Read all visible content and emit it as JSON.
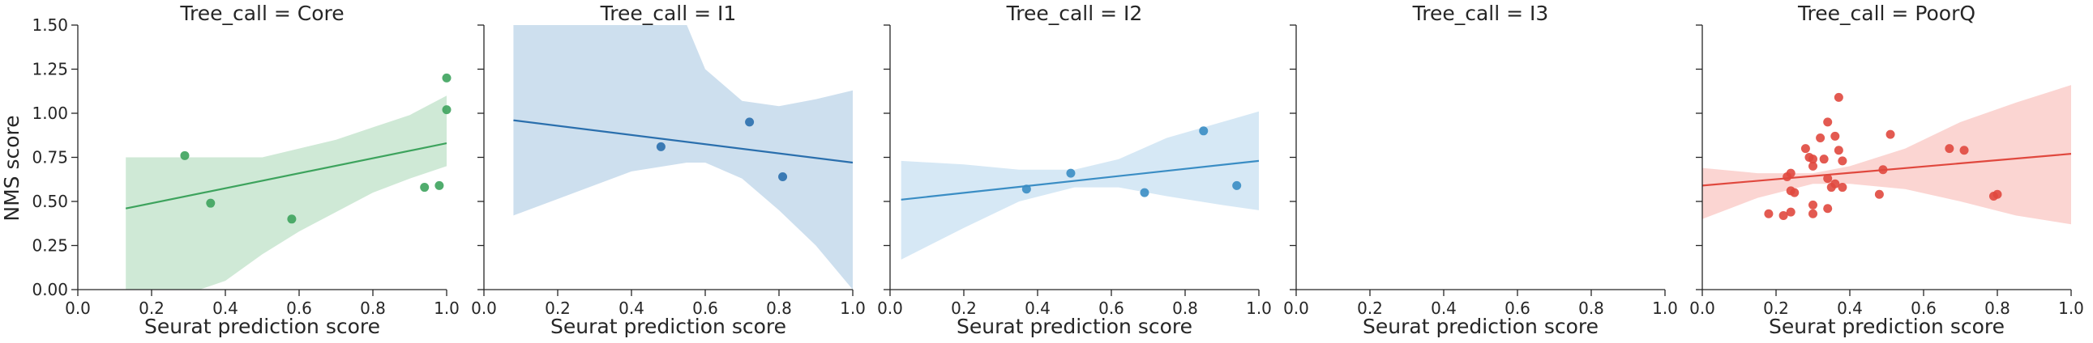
{
  "chart_data": {
    "type": "scatter",
    "layout": "faceted",
    "xlabel": "Seurat prediction score",
    "ylabel": "NMS score",
    "xlim": [
      0,
      1
    ],
    "ylim": [
      0,
      1.5
    ],
    "xticks": [
      "0.0",
      "0.2",
      "0.4",
      "0.6",
      "0.8",
      "1.0"
    ],
    "yticks": [
      "0.00",
      "0.25",
      "0.50",
      "0.75",
      "1.00",
      "1.25",
      "1.50"
    ],
    "grid": false,
    "facets": [
      {
        "title": "Tree_call = Core",
        "color": "#3da35d",
        "band_color": "#cfe9d6",
        "points": [
          [
            0.29,
            0.76
          ],
          [
            0.36,
            0.49
          ],
          [
            0.58,
            0.4
          ],
          [
            0.94,
            0.58
          ],
          [
            0.98,
            0.59
          ],
          [
            1.0,
            1.2
          ],
          [
            1.0,
            1.02
          ]
        ],
        "fit": [
          [
            0.13,
            0.46
          ],
          [
            1.0,
            0.83
          ]
        ],
        "band": [
          [
            0.13,
            0.75,
            0.0
          ],
          [
            0.2,
            0.75,
            0.0
          ],
          [
            0.33,
            0.75,
            0.0
          ],
          [
            0.4,
            0.75,
            0.05
          ],
          [
            0.5,
            0.75,
            0.2
          ],
          [
            0.6,
            0.8,
            0.33
          ],
          [
            0.7,
            0.85,
            0.44
          ],
          [
            0.8,
            0.92,
            0.55
          ],
          [
            0.9,
            0.99,
            0.63
          ],
          [
            1.0,
            1.1,
            0.7
          ]
        ]
      },
      {
        "title": "Tree_call = I1",
        "color": "#2a6fad",
        "band_color": "#cddfee",
        "points": [
          [
            0.48,
            0.81
          ],
          [
            0.72,
            0.95
          ],
          [
            0.81,
            0.64
          ]
        ],
        "fit": [
          [
            0.08,
            0.96
          ],
          [
            1.0,
            0.72
          ]
        ],
        "band": [
          [
            0.08,
            1.5,
            0.42
          ],
          [
            0.4,
            1.5,
            0.67
          ],
          [
            0.55,
            1.5,
            0.72
          ],
          [
            0.6,
            1.25,
            0.72
          ],
          [
            0.7,
            1.07,
            0.63
          ],
          [
            0.8,
            1.04,
            0.45
          ],
          [
            0.9,
            1.08,
            0.25
          ],
          [
            1.0,
            1.13,
            0.0
          ]
        ]
      },
      {
        "title": "Tree_call = I2",
        "color": "#3a8dc4",
        "band_color": "#d6e8f5",
        "points": [
          [
            0.37,
            0.57
          ],
          [
            0.49,
            0.66
          ],
          [
            0.69,
            0.55
          ],
          [
            0.85,
            0.9
          ],
          [
            0.94,
            0.59
          ]
        ],
        "fit": [
          [
            0.03,
            0.51
          ],
          [
            1.0,
            0.73
          ]
        ],
        "band": [
          [
            0.03,
            0.73,
            0.17
          ],
          [
            0.2,
            0.71,
            0.35
          ],
          [
            0.35,
            0.68,
            0.5
          ],
          [
            0.5,
            0.68,
            0.58
          ],
          [
            0.62,
            0.74,
            0.58
          ],
          [
            0.75,
            0.86,
            0.53
          ],
          [
            0.9,
            0.95,
            0.48
          ],
          [
            1.0,
            1.01,
            0.45
          ]
        ]
      },
      {
        "title": "Tree_call = I3",
        "color": "#999999",
        "band_color": "#eeeeee",
        "points": [],
        "fit": [],
        "band": []
      },
      {
        "title": "Tree_call = PoorQ",
        "color": "#e0483e",
        "band_color": "#fbd5d2",
        "points": [
          [
            0.18,
            0.43
          ],
          [
            0.22,
            0.42
          ],
          [
            0.24,
            0.44
          ],
          [
            0.23,
            0.64
          ],
          [
            0.24,
            0.66
          ],
          [
            0.24,
            0.56
          ],
          [
            0.25,
            0.55
          ],
          [
            0.28,
            0.8
          ],
          [
            0.29,
            0.75
          ],
          [
            0.3,
            0.74
          ],
          [
            0.3,
            0.7
          ],
          [
            0.3,
            0.43
          ],
          [
            0.3,
            0.48
          ],
          [
            0.32,
            0.86
          ],
          [
            0.33,
            0.74
          ],
          [
            0.34,
            0.95
          ],
          [
            0.34,
            0.63
          ],
          [
            0.34,
            0.46
          ],
          [
            0.35,
            0.58
          ],
          [
            0.36,
            0.87
          ],
          [
            0.36,
            0.6
          ],
          [
            0.37,
            1.09
          ],
          [
            0.37,
            0.79
          ],
          [
            0.38,
            0.73
          ],
          [
            0.38,
            0.58
          ],
          [
            0.48,
            0.54
          ],
          [
            0.49,
            0.68
          ],
          [
            0.51,
            0.88
          ],
          [
            0.67,
            0.8
          ],
          [
            0.71,
            0.79
          ],
          [
            0.79,
            0.53
          ],
          [
            0.8,
            0.54
          ]
        ],
        "fit": [
          [
            0.0,
            0.59
          ],
          [
            1.0,
            0.77
          ]
        ],
        "band": [
          [
            0.0,
            0.69,
            0.4
          ],
          [
            0.15,
            0.66,
            0.52
          ],
          [
            0.3,
            0.66,
            0.6
          ],
          [
            0.4,
            0.7,
            0.6
          ],
          [
            0.55,
            0.8,
            0.57
          ],
          [
            0.7,
            0.95,
            0.5
          ],
          [
            0.85,
            1.06,
            0.42
          ],
          [
            1.0,
            1.16,
            0.37
          ]
        ]
      }
    ]
  }
}
